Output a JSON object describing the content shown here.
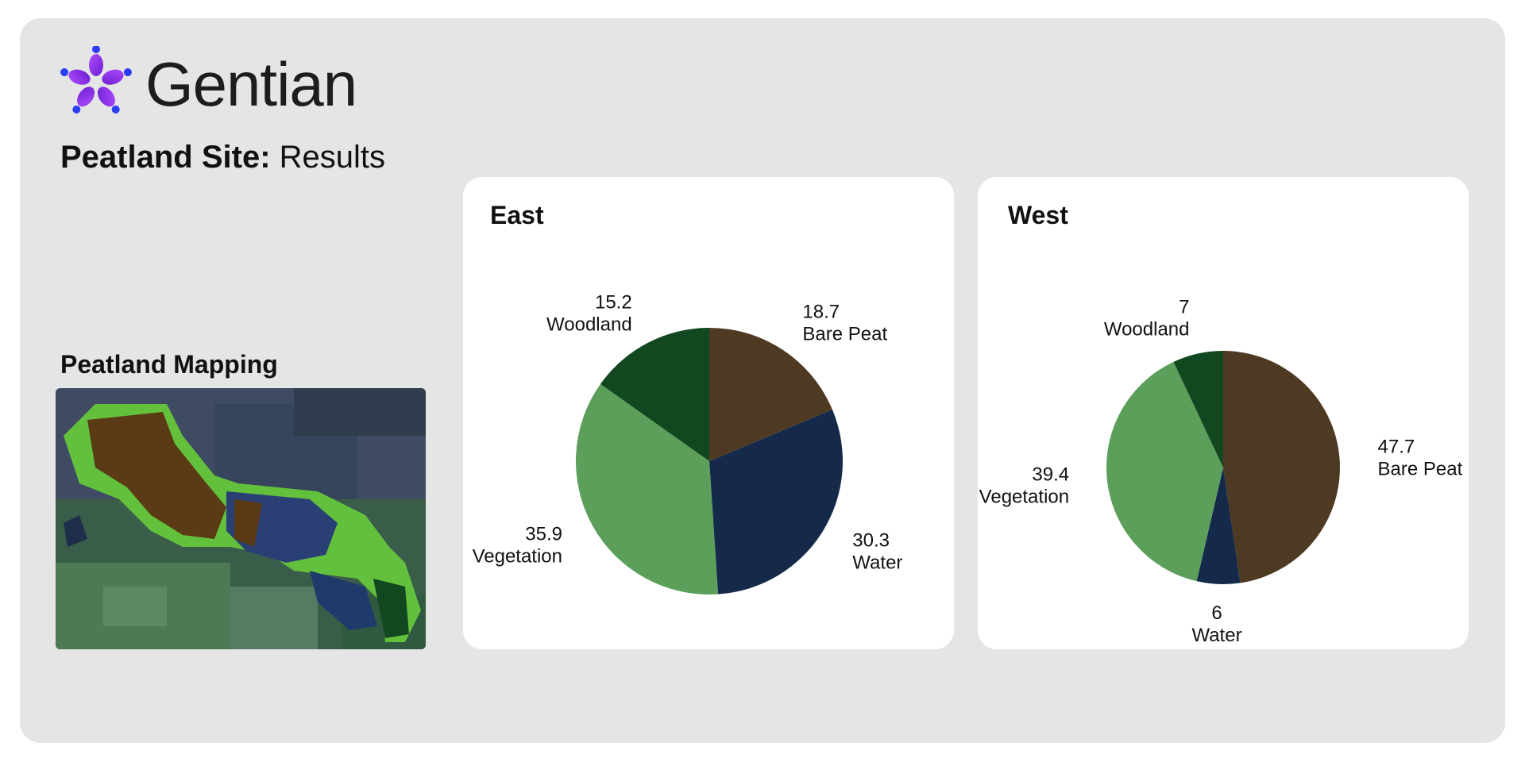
{
  "brand": {
    "name": "Gentian"
  },
  "page": {
    "title_bold": "Peatland Site:",
    "title_rest": " Results"
  },
  "map": {
    "title": "Peatland Mapping"
  },
  "colors": {
    "Bare Peat": "#4e3a22",
    "Water": "#152a4b",
    "Vegetation": "#5b9f5b",
    "Woodland": "#11481f",
    "logo_purple": "#8a2be2",
    "logo_blue": "#2b3df5"
  },
  "chart_data": [
    {
      "type": "pie",
      "title": "East",
      "categories": [
        "Bare Peat",
        "Water",
        "Vegetation",
        "Woodland"
      ],
      "values": [
        18.7,
        30.3,
        35.9,
        15.2
      ]
    },
    {
      "type": "pie",
      "title": "West",
      "categories": [
        "Bare Peat",
        "Water",
        "Vegetation",
        "Woodland"
      ],
      "values": [
        47.7,
        6,
        39.4,
        7
      ]
    }
  ]
}
